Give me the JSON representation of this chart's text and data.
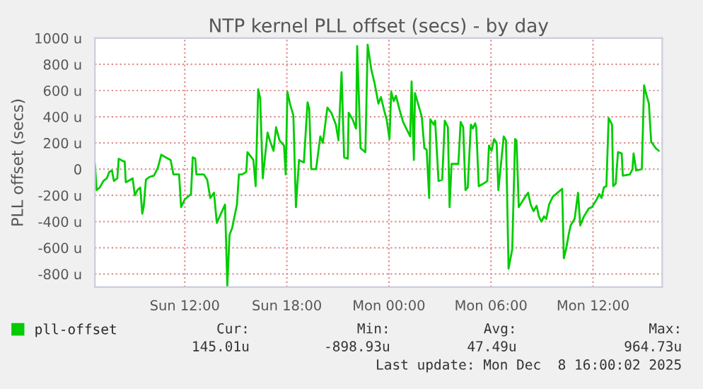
{
  "chart_data": {
    "type": "line",
    "title": "NTP kernel PLL offset (secs) - by day",
    "ylabel": "PLL offset (secs)",
    "series": [
      {
        "name": "pll-offset",
        "color": "#00cc00",
        "x": [
          "2025-12-07T06:43",
          "2025-12-07T06:49",
          "2025-12-07T07:00",
          "2025-12-07T07:13",
          "2025-12-07T07:25",
          "2025-12-07T07:34",
          "2025-12-07T07:43",
          "2025-12-07T07:50",
          "2025-12-07T08:02",
          "2025-12-07T08:07",
          "2025-12-07T08:23",
          "2025-12-07T08:28",
          "2025-12-07T08:32",
          "2025-12-07T08:49",
          "2025-12-07T08:56",
          "2025-12-07T09:04",
          "2025-12-07T09:13",
          "2025-12-07T09:23",
          "2025-12-07T09:30",
          "2025-12-07T09:35",
          "2025-12-07T09:43",
          "2025-12-07T09:55",
          "2025-12-07T10:11",
          "2025-12-07T10:25",
          "2025-12-07T10:37",
          "2025-12-07T10:53",
          "2025-12-07T11:10",
          "2025-12-07T11:20",
          "2025-12-07T11:40",
          "2025-12-07T11:47",
          "2025-12-07T12:00",
          "2025-12-07T12:17",
          "2025-12-07T12:22",
          "2025-12-07T12:28",
          "2025-12-07T12:37",
          "2025-12-07T12:41",
          "2025-12-07T13:07",
          "2025-12-07T13:19",
          "2025-12-07T13:30",
          "2025-12-07T13:43",
          "2025-12-07T13:53",
          "2025-12-07T14:22",
          "2025-12-07T14:30",
          "2025-12-07T14:38",
          "2025-12-07T14:47",
          "2025-12-07T15:04",
          "2025-12-07T15:11",
          "2025-12-07T15:23",
          "2025-12-07T15:37",
          "2025-12-07T15:41",
          "2025-12-07T16:02",
          "2025-12-07T16:10",
          "2025-12-07T16:19",
          "2025-12-07T16:26",
          "2025-12-07T16:35",
          "2025-12-07T16:52",
          "2025-12-07T17:00",
          "2025-12-07T17:13",
          "2025-12-07T17:22",
          "2025-12-07T17:34",
          "2025-12-07T17:50",
          "2025-12-07T17:56",
          "2025-12-07T18:02",
          "2025-12-07T18:11",
          "2025-12-07T18:23",
          "2025-12-07T18:32",
          "2025-12-07T18:43",
          "2025-12-07T19:00",
          "2025-12-07T19:13",
          "2025-12-07T19:19",
          "2025-12-07T19:26",
          "2025-12-07T19:43",
          "2025-12-07T19:58",
          "2025-12-07T20:07",
          "2025-12-07T20:23",
          "2025-12-07T20:37",
          "2025-12-07T20:53",
          "2025-12-07T21:02",
          "2025-12-07T21:13",
          "2025-12-07T21:22",
          "2025-12-07T21:35",
          "2025-12-07T21:38",
          "2025-12-07T21:52",
          "2025-12-07T22:04",
          "2025-12-07T22:08",
          "2025-12-07T22:20",
          "2025-12-07T22:37",
          "2025-12-07T22:45",
          "2025-12-07T22:58",
          "2025-12-07T23:10",
          "2025-12-07T23:23",
          "2025-12-07T23:32",
          "2025-12-07T23:43",
          "2025-12-07T23:52",
          "2025-12-08T00:02",
          "2025-12-08T00:08",
          "2025-12-08T00:17",
          "2025-12-08T00:25",
          "2025-12-08T00:38",
          "2025-12-08T00:50",
          "2025-12-08T01:15",
          "2025-12-08T01:20",
          "2025-12-08T01:28",
          "2025-12-08T01:32",
          "2025-12-08T01:56",
          "2025-12-08T02:05",
          "2025-12-08T02:13",
          "2025-12-08T02:22",
          "2025-12-08T02:26",
          "2025-12-08T02:38",
          "2025-12-08T02:43",
          "2025-12-08T02:55",
          "2025-12-08T03:08",
          "2025-12-08T03:17",
          "2025-12-08T03:28",
          "2025-12-08T03:34",
          "2025-12-08T03:41",
          "2025-12-08T04:05",
          "2025-12-08T04:13",
          "2025-12-08T04:22",
          "2025-12-08T04:30",
          "2025-12-08T04:38",
          "2025-12-08T04:49",
          "2025-12-08T04:56",
          "2025-12-08T05:04",
          "2025-12-08T05:08",
          "2025-12-08T05:17",
          "2025-12-08T05:34",
          "2025-12-08T05:47",
          "2025-12-08T05:53",
          "2025-12-08T06:02",
          "2025-12-08T06:11",
          "2025-12-08T06:20",
          "2025-12-08T06:26",
          "2025-12-08T06:45",
          "2025-12-08T06:53",
          "2025-12-08T07:02",
          "2025-12-08T07:15",
          "2025-12-08T07:25",
          "2025-12-08T07:30",
          "2025-12-08T07:38",
          "2025-12-08T07:58",
          "2025-12-08T08:11",
          "2025-12-08T08:20",
          "2025-12-08T08:30",
          "2025-12-08T08:41",
          "2025-12-08T08:49",
          "2025-12-08T08:58",
          "2025-12-08T09:07",
          "2025-12-08T09:15",
          "2025-12-08T09:25",
          "2025-12-08T09:38",
          "2025-12-08T10:11",
          "2025-12-08T10:17",
          "2025-12-08T10:25",
          "2025-12-08T10:34",
          "2025-12-08T10:41",
          "2025-12-08T10:55",
          "2025-12-08T11:07",
          "2025-12-08T11:15",
          "2025-12-08T11:28",
          "2025-12-08T11:45",
          "2025-12-08T11:56",
          "2025-12-08T12:13",
          "2025-12-08T12:22",
          "2025-12-08T12:30",
          "2025-12-08T12:38",
          "2025-12-08T12:47",
          "2025-12-08T12:55",
          "2025-12-08T13:07",
          "2025-12-08T13:11",
          "2025-12-08T13:20",
          "2025-12-08T13:28",
          "2025-12-08T13:41",
          "2025-12-08T13:45",
          "2025-12-08T14:10",
          "2025-12-08T14:19",
          "2025-12-08T14:23",
          "2025-12-08T14:32",
          "2025-12-08T14:52",
          "2025-12-08T15:00",
          "2025-12-08T15:08",
          "2025-12-08T15:17",
          "2025-12-08T15:25",
          "2025-12-08T15:41",
          "2025-12-08T15:52"
        ],
        "values": [
          40,
          -160,
          -140,
          -90,
          -70,
          -20,
          -10,
          -90,
          -70,
          80,
          60,
          60,
          -100,
          -80,
          -70,
          -200,
          -160,
          -140,
          -340,
          -290,
          -80,
          -60,
          -50,
          10,
          110,
          90,
          70,
          -40,
          -40,
          -290,
          -230,
          -200,
          -190,
          90,
          80,
          -40,
          -40,
          -80,
          -220,
          -180,
          -410,
          -270,
          -890,
          -500,
          -450,
          -270,
          -40,
          -40,
          -20,
          130,
          70,
          -130,
          610,
          540,
          -70,
          280,
          220,
          140,
          320,
          220,
          180,
          -40,
          590,
          500,
          410,
          -290,
          70,
          50,
          510,
          460,
          0,
          0,
          250,
          200,
          470,
          430,
          340,
          220,
          740,
          90,
          80,
          430,
          380,
          310,
          940,
          160,
          130,
          950,
          760,
          650,
          500,
          550,
          450,
          380,
          230,
          590,
          520,
          560,
          450,
          360,
          250,
          670,
          70,
          580,
          400,
          160,
          150,
          -220,
          380,
          340,
          370,
          -90,
          -80,
          370,
          320,
          -290,
          40,
          40,
          360,
          320,
          -160,
          -140,
          340,
          310,
          350,
          320,
          -130,
          -110,
          -90,
          180,
          140,
          230,
          200,
          -160,
          250,
          220,
          -760,
          -610,
          230,
          220,
          -290,
          -220,
          -180,
          -270,
          -320,
          -280,
          -360,
          -400,
          -360,
          -380,
          -270,
          -210,
          -150,
          -680,
          -610,
          -500,
          -430,
          -380,
          -180,
          -430,
          -360,
          -300,
          -290,
          -230,
          -190,
          -220,
          -140,
          -130,
          390,
          340,
          -130,
          -110,
          130,
          120,
          -50,
          -40,
          0,
          120,
          -10,
          0,
          640,
          570,
          500,
          210,
          160,
          140
        ]
      }
    ],
    "xlim": [
      "2025-12-07T06:43",
      "2025-12-08T16:04"
    ],
    "xticks": [
      {
        "value": "2025-12-07T12:00",
        "label": "Sun 12:00"
      },
      {
        "value": "2025-12-07T18:00",
        "label": "Sun 18:00"
      },
      {
        "value": "2025-12-08T00:00",
        "label": "Mon 00:00"
      },
      {
        "value": "2025-12-08T06:00",
        "label": "Mon 06:00"
      },
      {
        "value": "2025-12-08T12:00",
        "label": "Mon 12:00"
      }
    ],
    "ylim": [
      -900,
      1000
    ],
    "yticks": [
      {
        "value": -800,
        "label": "-800 u"
      },
      {
        "value": -600,
        "label": "-600 u"
      },
      {
        "value": -400,
        "label": "-400 u"
      },
      {
        "value": -200,
        "label": "-200 u"
      },
      0,
      {
        "value": 200,
        "label": "200 u"
      },
      {
        "value": 400,
        "label": "400 u"
      },
      {
        "value": 600,
        "label": "600 u"
      },
      {
        "value": 800,
        "label": "800 u"
      },
      {
        "value": 1000,
        "label": "1000 u"
      }
    ],
    "grid": true,
    "legend": "bottom left",
    "annotations": [
      "Cur:",
      "Min:",
      "Avg:",
      "Max:",
      "145.01u",
      "-898.93u",
      "47.49u",
      "964.73u",
      "Last update: Mon Dec  8 16:00:02 2025"
    ]
  }
}
